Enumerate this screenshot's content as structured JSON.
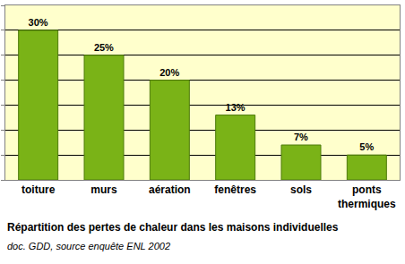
{
  "chart_data": {
    "type": "bar",
    "title": "Répartition des pertes de chaleur dans les maisons individuelles",
    "subtitle": "doc. GDD, source enquête ENL 2002",
    "categories": [
      "toiture",
      "murs",
      "aération",
      "fenêtres",
      "sols",
      "ponts thermiques"
    ],
    "values": [
      30,
      25,
      20,
      13,
      7,
      5
    ],
    "value_labels": [
      "30%",
      "25%",
      "20%",
      "13%",
      "7%",
      "5%"
    ],
    "color": "#7ab317",
    "ylim": [
      0,
      35
    ],
    "yticks": [
      0,
      5,
      10,
      15,
      20,
      25,
      30,
      35
    ],
    "grid": true,
    "data_labels": true,
    "tick_labels": "x"
  }
}
